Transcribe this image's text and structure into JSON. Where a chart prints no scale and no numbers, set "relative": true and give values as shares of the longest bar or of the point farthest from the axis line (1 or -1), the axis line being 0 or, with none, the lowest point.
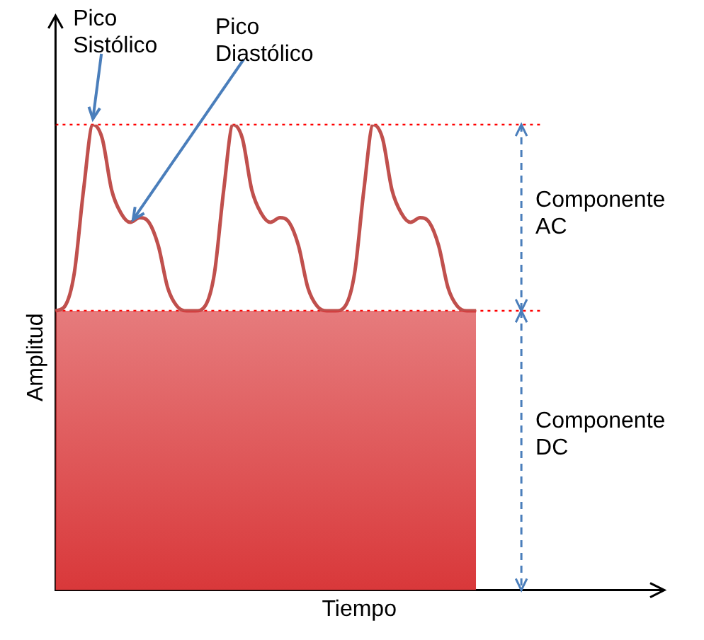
{
  "chart_data": {
    "type": "line",
    "relative": true,
    "xlabel": "Tiempo",
    "ylabel": "Amplitud",
    "tick_labels": false,
    "grid": false,
    "legend": false,
    "marker": "none",
    "line_style": "solid",
    "categories": [
      null,
      null,
      null,
      null,
      null,
      null,
      null,
      null,
      null,
      null,
      null,
      null,
      null,
      null,
      null,
      null,
      null,
      null,
      null,
      null,
      null,
      null,
      null,
      null,
      null,
      null,
      null,
      null,
      null,
      null,
      null,
      null,
      null,
      null,
      null,
      null,
      null,
      null,
      null,
      null,
      null,
      null,
      null,
      null,
      null,
      null,
      null,
      null,
      null,
      null,
      null,
      null,
      null,
      null,
      null,
      null,
      null,
      null,
      null,
      null,
      null,
      null,
      null,
      null,
      null,
      null
    ],
    "series": [
      {
        "type": "area",
        "color": "#d9383a",
        "values": [
          0.6,
          0.6,
          0.6,
          0.6,
          0.6,
          0.6,
          0.6,
          0.6,
          0.6,
          0.6,
          0.6,
          0.6,
          0.6,
          0.6,
          0.6,
          0.6,
          0.6,
          0.6,
          0.6,
          0.6,
          0.6,
          0.6,
          0.6,
          0.6,
          0.6,
          0.6,
          0.6,
          0.6,
          0.6,
          0.6,
          0.6,
          0.6,
          0.6,
          0.6,
          0.6,
          0.6,
          0.6,
          0.6,
          0.6,
          0.6,
          0.6,
          0.6,
          0.6,
          0.6,
          0.6,
          0.6,
          null,
          null,
          null,
          null,
          null,
          null,
          null,
          null,
          null,
          null,
          null,
          null,
          null,
          null,
          null,
          null,
          null,
          null,
          null,
          null
        ]
      },
      {
        "type": "line",
        "color": "#c0504d",
        "values": [
          0.6,
          0.61,
          0.68,
          0.86,
          1,
          0.97,
          0.86,
          0.81,
          0.79,
          0.8,
          0.79,
          0.74,
          0.65,
          0.61,
          0.6,
          0.6,
          0.61,
          0.68,
          0.86,
          1,
          0.97,
          0.86,
          0.81,
          0.79,
          0.8,
          0.79,
          0.74,
          0.65,
          0.61,
          0.6,
          0.6,
          0.61,
          0.68,
          0.86,
          1,
          0.97,
          0.86,
          0.81,
          0.79,
          0.8,
          0.79,
          0.74,
          0.65,
          0.61,
          0.6,
          0.6,
          null,
          null,
          null,
          null,
          null,
          null,
          null,
          null,
          null,
          null,
          null,
          null,
          null,
          null,
          null,
          null,
          null,
          null,
          null,
          null
        ]
      }
    ],
    "ref_lines": [
      {
        "axis": "y",
        "value": 1,
        "color": "#ff0000",
        "line_style": "dotted"
      },
      {
        "axis": "y",
        "value": 0.6,
        "color": "#ff0000",
        "line_style": "dotted"
      }
    ],
    "annotations": [
      "Pico Sistólico",
      "Pico Diastólico",
      "Componente AC",
      "Componente DC"
    ]
  }
}
